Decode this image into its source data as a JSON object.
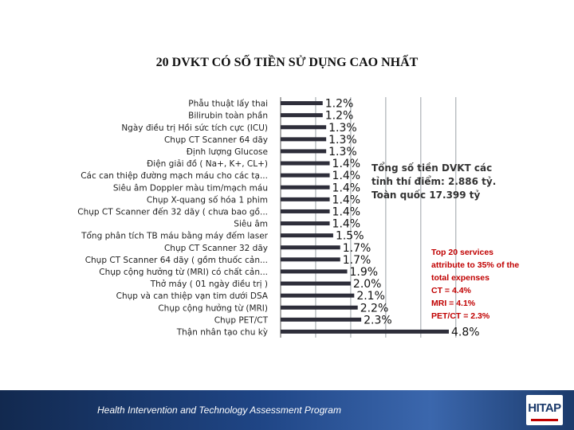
{
  "chart_data": {
    "type": "bar",
    "orientation": "horizontal",
    "title": "20 DVKT CÓ SỐ TIỀN SỬ DỤNG CAO NHẤT",
    "categories": [
      "Phẫu thuật lấy thai",
      "Bilirubin toàn phần",
      "Ngày điều trị Hồi sức tích cực (ICU)",
      "Chụp CT Scanner 64 dãy",
      "Định lượng Glucose",
      "Điện giải đồ ( Na+, K+, CL+)",
      "Các can thiệp đường mạch máu cho các tạ...",
      "Siêu âm Doppler màu tim/mạch máu",
      "Chụp X-quang số hóa 1 phim",
      "Chụp CT Scanner đến 32 dãy ( chưa bao gồ...",
      "Siêu âm",
      "Tổng phân tích TB máu bằng máy đếm laser",
      "Chụp CT Scanner 32 dãy",
      "Chụp CT Scanner 64 dãy ( gồm thuốc cản...",
      "Chụp cộng hưởng từ (MRI) có chất cản...",
      "Thở máy ( 01 ngày điều trị )",
      "Chụp và can thiệp vạn tim dưới DSA",
      "Chụp cộng hưởng từ (MRI)",
      "Chụp PET/CT",
      "Thận nhân tạo chu kỳ"
    ],
    "values": [
      1.2,
      1.2,
      1.3,
      1.3,
      1.3,
      1.4,
      1.4,
      1.4,
      1.4,
      1.4,
      1.4,
      1.5,
      1.7,
      1.7,
      1.9,
      2.0,
      2.1,
      2.2,
      2.3,
      4.8
    ],
    "value_labels": [
      "1.2%",
      "1.2%",
      "1.3%",
      "1.3%",
      "1.3%",
      "1.4%",
      "1.4%",
      "1.4%",
      "1.4%",
      "1.4%",
      "1.4%",
      "1.5%",
      "1.7%",
      "1.7%",
      "1.9%",
      "2.0%",
      "2.1%",
      "2.2%",
      "2.3%",
      "4.8%"
    ],
    "unit": "%",
    "xlim": [
      0,
      5
    ],
    "grid": true,
    "legend": "none",
    "bar_color": "#2e2e3a",
    "grid_color": "#9aa0a6"
  },
  "annotations": {
    "vn_lines": [
      "Tổng số tiền DVKT các",
      "tỉnh thí điểm: 2.886 tỷ.",
      "Toàn quốc 17.399 tỷ"
    ],
    "en_lines": [
      "Top 20 services",
      "attribute to 35% of the",
      "total expenses",
      "CT = 4.4%",
      "MRI = 4.1%",
      "PET/CT = 2.3%"
    ],
    "en_color": "#c00000"
  },
  "footer": {
    "program": "Health Intervention and Technology Assessment Program",
    "logo": "HITAP",
    "color": "#1b3a6b"
  }
}
